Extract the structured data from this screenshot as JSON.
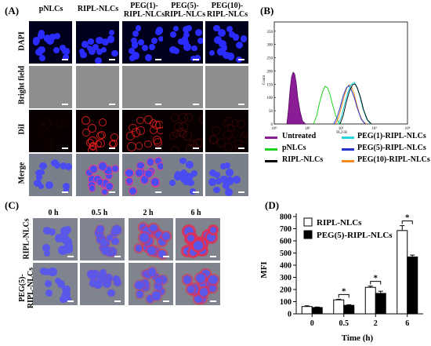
{
  "panels": {
    "a": {
      "label": "(A)",
      "columns": [
        "pNLCs",
        "RIPL-NLCs",
        "PEG(1)-\nRIPL-NLCs",
        "PEG(5)-\nRIPL-NLCs",
        "PEG(10)-\nRIPL-NLCs"
      ],
      "rows": [
        "DAPI",
        "Bright field",
        "DiI",
        "Merge"
      ]
    },
    "b": {
      "label": "(B)",
      "ylabel": "Count",
      "xlabel": "FL2-H",
      "yticks": [
        "0",
        "50",
        "100",
        "150",
        "200",
        "250",
        "300",
        "350"
      ],
      "xticks": [
        "10⁰",
        "10¹",
        "10²",
        "10³",
        "10⁴"
      ],
      "legend": [
        {
          "name": "Untreated",
          "color": "#8a1c96"
        },
        {
          "name": "PEG(1)-RIPL-NLCs",
          "color": "#28d6e0"
        },
        {
          "name": "pNLCs",
          "color": "#1fd11f"
        },
        {
          "name": "PEG(5)-RIPL-NLCs",
          "color": "#2432c8"
        },
        {
          "name": "RIPL-NLCs",
          "color": "#000000"
        },
        {
          "name": "PEG(10)-RIPL-NLCs",
          "color": "#f08a1c"
        }
      ]
    },
    "c": {
      "label": "(C)",
      "times": [
        "0 h",
        "0.5 h",
        "2 h",
        "6 h"
      ],
      "rows": [
        "RIPL-NLCs",
        "PEG(5)-\nRIPL-NLCs"
      ]
    },
    "d": {
      "label": "(D)",
      "significance": "*"
    }
  },
  "chart_data": {
    "type": "bar",
    "categories": [
      "0",
      "0.5",
      "2",
      "6"
    ],
    "xlabel": "Time (h)",
    "ylabel": "MFI",
    "ylim": [
      0,
      800
    ],
    "yticks": [
      0,
      100,
      200,
      300,
      400,
      500,
      600,
      700,
      800
    ],
    "series": [
      {
        "name": "RIPL-NLCs",
        "values": [
          60,
          115,
          218,
          685
        ],
        "errors": [
          6,
          5,
          10,
          40
        ],
        "color": "#ffffff"
      },
      {
        "name": "PEG(5)-RIPL-NLCs",
        "values": [
          52,
          70,
          168,
          468
        ],
        "errors": [
          4,
          5,
          18,
          15
        ],
        "color": "#000000"
      }
    ],
    "legend_position": "top-left"
  }
}
